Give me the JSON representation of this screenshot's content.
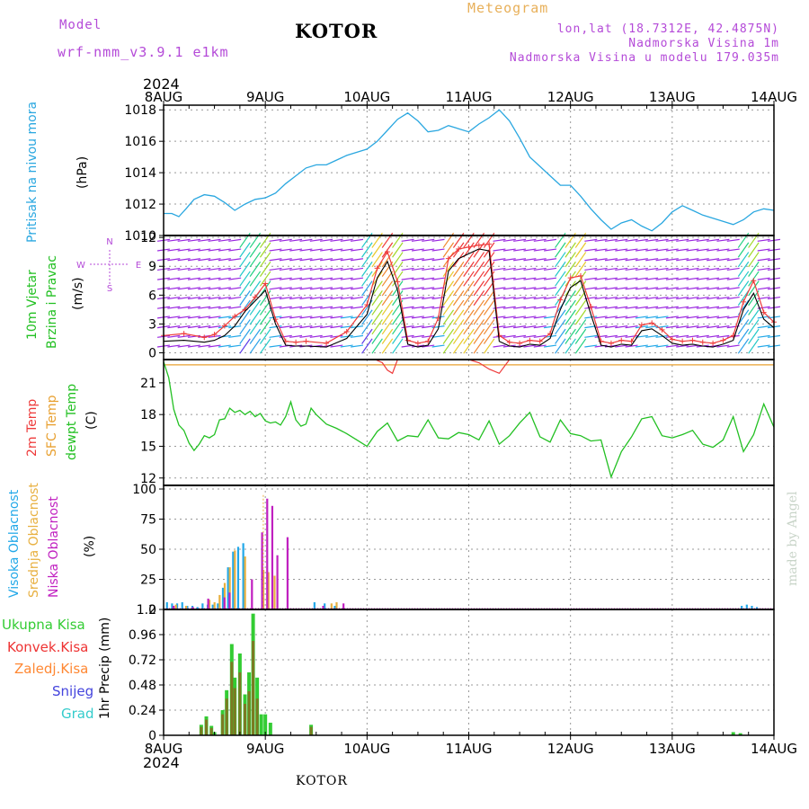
{
  "header": {
    "model_label": "Model",
    "model_name": "wrf-nmm_v3.9.1  e1km",
    "station_title": "KOTOR",
    "meteogram_label": "Meteogram",
    "lonlat": "lon,lat (18.7312E, 42.4875N)",
    "elevation": "Nadmorska Visina 1m",
    "model_elevation": "Nadmorska Visina u modelu 179.035m",
    "year_top": "2024",
    "year_bottom": "2024",
    "bottom_station": "KOTOR",
    "credit": "made by Angel"
  },
  "colors": {
    "pressure": "#2aa7e0",
    "wind_speed": "#000000",
    "gust": "#ee3b3b",
    "temp2m": "#ee3b3b",
    "sfc_temp": "#e8a030",
    "dewpoint": "#22c022",
    "cloud_high": "#22a8e8",
    "cloud_mid": "#e8b040",
    "cloud_low": "#c020c0",
    "precip_total": "#33cc33",
    "precip_conv": "#ee3333",
    "precip_frozen": "#ff8833",
    "snow": "#4444dd",
    "graupel": "#33cccc",
    "axis_label_purple": "#b44ad8"
  },
  "chart_data": [
    {
      "type": "line",
      "panel": "pressure",
      "title": "",
      "ylabel_lines": [
        "Pritisak na nivou mora"
      ],
      "unit": "(hPa)",
      "x_ticks": [
        "8AUG",
        "9AUG",
        "10AUG",
        "11AUG",
        "12AUG",
        "13AUG",
        "14AUG"
      ],
      "ylim": [
        1010,
        1018.3
      ],
      "y_ticks": [
        1010,
        1012,
        1014,
        1016,
        1018
      ],
      "grid": true,
      "series": [
        {
          "name": "pressure",
          "x": [
            0,
            0.08,
            0.15,
            0.22,
            0.3,
            0.4,
            0.5,
            0.6,
            0.7,
            0.8,
            0.9,
            1.0,
            1.1,
            1.2,
            1.3,
            1.4,
            1.5,
            1.6,
            1.7,
            1.8,
            1.9,
            2.0,
            2.1,
            2.2,
            2.3,
            2.4,
            2.5,
            2.6,
            2.7,
            2.8,
            2.9,
            3.0,
            3.1,
            3.2,
            3.3,
            3.4,
            3.5,
            3.6,
            3.7,
            3.8,
            3.9,
            4.0,
            4.1,
            4.2,
            4.3,
            4.4,
            4.5,
            4.6,
            4.7,
            4.8,
            4.9,
            5.0,
            5.1,
            5.2,
            5.3,
            5.4,
            5.5,
            5.6,
            5.7,
            5.8,
            5.9,
            6.0
          ],
          "y": [
            1011.4,
            1011.4,
            1011.2,
            1011.7,
            1012.3,
            1012.6,
            1012.5,
            1012.1,
            1011.6,
            1012.0,
            1012.3,
            1012.4,
            1012.7,
            1013.3,
            1013.8,
            1014.3,
            1014.5,
            1014.5,
            1014.8,
            1015.1,
            1015.3,
            1015.5,
            1016.0,
            1016.7,
            1017.4,
            1017.8,
            1017.3,
            1016.6,
            1016.7,
            1017.0,
            1016.8,
            1016.6,
            1017.1,
            1017.5,
            1018.0,
            1017.3,
            1016.2,
            1015.0,
            1014.4,
            1013.8,
            1013.2,
            1013.2,
            1012.5,
            1011.7,
            1011.0,
            1010.4,
            1010.8,
            1011.0,
            1010.6,
            1010.3,
            1010.8,
            1011.5,
            1011.9,
            1011.6,
            1011.3,
            1011.1,
            1010.9,
            1010.7,
            1011.0,
            1011.5,
            1011.7,
            1011.6
          ]
        }
      ]
    },
    {
      "type": "line",
      "panel": "wind",
      "title": "",
      "ylabel_lines": [
        "10m Vjetar",
        "Brzina i Pravac"
      ],
      "unit": "(m/s)",
      "compass_labels": [
        "N",
        "W",
        "E",
        "S"
      ],
      "ylim": [
        -0.7,
        12.2
      ],
      "y_ticks": [
        0,
        3,
        6,
        9,
        12
      ],
      "grid": true,
      "series": [
        {
          "name": "wind_speed",
          "x": [
            0,
            0.2,
            0.4,
            0.5,
            0.6,
            0.7,
            0.8,
            0.9,
            1.0,
            1.1,
            1.2,
            1.3,
            1.4,
            1.6,
            1.8,
            2.0,
            2.1,
            2.2,
            2.3,
            2.4,
            2.5,
            2.6,
            2.7,
            2.8,
            2.9,
            3.0,
            3.1,
            3.2,
            3.3,
            3.4,
            3.5,
            3.6,
            3.7,
            3.8,
            3.9,
            4.0,
            4.1,
            4.2,
            4.3,
            4.4,
            4.5,
            4.6,
            4.7,
            4.8,
            4.9,
            5.0,
            5.1,
            5.2,
            5.3,
            5.4,
            5.5,
            5.6,
            5.7,
            5.8,
            5.9,
            6.0
          ],
          "y": [
            1.2,
            1.3,
            1.1,
            1.3,
            1.8,
            2.8,
            4.3,
            5.4,
            6.5,
            3.0,
            0.8,
            0.7,
            0.7,
            0.6,
            1.5,
            4.0,
            7.8,
            9.5,
            6.5,
            0.9,
            0.6,
            0.8,
            2.5,
            8.5,
            9.8,
            10.3,
            10.8,
            10.6,
            1.2,
            0.7,
            0.6,
            0.9,
            0.8,
            1.5,
            4.5,
            6.8,
            7.5,
            4.0,
            0.8,
            0.6,
            0.9,
            0.8,
            2.3,
            2.5,
            1.8,
            1.0,
            0.8,
            0.9,
            0.7,
            0.6,
            0.9,
            1.3,
            4.5,
            6.2,
            3.5,
            2.6
          ]
        },
        {
          "name": "gust",
          "x": [
            0,
            0.2,
            0.4,
            0.5,
            0.6,
            0.7,
            0.8,
            0.9,
            1.0,
            1.1,
            1.2,
            1.3,
            1.4,
            1.6,
            1.8,
            2.0,
            2.1,
            2.2,
            2.3,
            2.4,
            2.5,
            2.6,
            2.7,
            2.8,
            2.9,
            3.0,
            3.1,
            3.2,
            3.3,
            3.4,
            3.5,
            3.6,
            3.7,
            3.8,
            3.9,
            4.0,
            4.1,
            4.2,
            4.3,
            4.4,
            4.5,
            4.6,
            4.7,
            4.8,
            4.9,
            5.0,
            5.1,
            5.2,
            5.3,
            5.4,
            5.5,
            5.6,
            5.7,
            5.8,
            5.9,
            6.0
          ],
          "y": [
            1.8,
            2.0,
            1.6,
            1.9,
            2.8,
            3.8,
            4.5,
            5.8,
            7.2,
            3.5,
            1.2,
            1.1,
            1.2,
            1.0,
            2.2,
            5.0,
            8.8,
            10.5,
            7.4,
            1.3,
            1.0,
            1.2,
            3.6,
            9.8,
            10.8,
            11.0,
            11.2,
            11.3,
            1.8,
            1.1,
            1.0,
            1.3,
            1.2,
            2.0,
            5.5,
            7.8,
            8.0,
            4.8,
            1.2,
            1.0,
            1.3,
            1.2,
            2.9,
            3.1,
            2.4,
            1.4,
            1.2,
            1.3,
            1.1,
            1.0,
            1.3,
            1.8,
            5.3,
            7.5,
            4.2,
            3.2
          ]
        }
      ]
    },
    {
      "type": "line",
      "panel": "temperature",
      "title": "",
      "ylabel_lines": [
        "2m Temp",
        "SFC Temp",
        "dewpt Temp"
      ],
      "unit": "(C)",
      "ylim": [
        11.3,
        23.2
      ],
      "y_ticks": [
        12,
        15,
        18,
        21
      ],
      "grid": true,
      "series": [
        {
          "name": "sfc_temp",
          "x": [
            0,
            6
          ],
          "y": [
            22.7,
            22.7
          ]
        },
        {
          "name": "temp2m",
          "x": [
            2.08,
            2.15,
            2.2,
            2.25,
            2.3,
            3.0,
            3.1,
            3.2,
            3.3,
            3.4
          ],
          "y": [
            23.2,
            22.9,
            22.2,
            21.9,
            23.2,
            23.2,
            22.9,
            22.3,
            21.9,
            23.2
          ]
        },
        {
          "name": "dewpoint",
          "x": [
            0,
            0.05,
            0.1,
            0.15,
            0.2,
            0.25,
            0.3,
            0.35,
            0.4,
            0.45,
            0.5,
            0.55,
            0.6,
            0.65,
            0.7,
            0.75,
            0.8,
            0.85,
            0.9,
            0.95,
            1.0,
            1.05,
            1.1,
            1.15,
            1.2,
            1.25,
            1.3,
            1.35,
            1.4,
            1.45,
            1.5,
            1.6,
            1.7,
            1.8,
            1.9,
            2.0,
            2.1,
            2.2,
            2.3,
            2.4,
            2.5,
            2.6,
            2.7,
            2.8,
            2.9,
            3.0,
            3.1,
            3.2,
            3.3,
            3.4,
            3.5,
            3.6,
            3.7,
            3.8,
            3.9,
            4.0,
            4.1,
            4.2,
            4.3,
            4.4,
            4.5,
            4.6,
            4.7,
            4.8,
            4.9,
            5.0,
            5.1,
            5.2,
            5.3,
            5.4,
            5.5,
            5.6,
            5.7,
            5.8,
            5.9,
            6.0
          ],
          "y": [
            23.0,
            21.5,
            18.5,
            17.0,
            16.5,
            15.3,
            14.6,
            15.2,
            16.0,
            15.8,
            16.1,
            17.5,
            17.6,
            18.6,
            18.2,
            18.4,
            18.0,
            18.3,
            17.8,
            18.1,
            17.4,
            17.2,
            17.3,
            17.0,
            17.8,
            19.2,
            17.5,
            16.9,
            17.1,
            18.6,
            18.0,
            17.1,
            16.7,
            16.2,
            15.6,
            15.0,
            16.4,
            17.2,
            15.5,
            16.0,
            15.9,
            17.5,
            15.8,
            15.7,
            16.3,
            16.1,
            15.6,
            17.4,
            15.2,
            16.0,
            17.2,
            18.2,
            15.9,
            15.4,
            17.5,
            16.2,
            16.0,
            15.5,
            15.6,
            12.1,
            14.5,
            15.9,
            17.6,
            17.8,
            16.0,
            15.8,
            16.1,
            16.5,
            15.2,
            14.9,
            15.6,
            17.8,
            14.5,
            16.1,
            19.0,
            16.8
          ]
        }
      ]
    },
    {
      "type": "bar",
      "panel": "cloud",
      "title": "",
      "ylabel_lines": [
        "Visoka Oblacnost",
        "Srednja Oblacnost",
        "Niska Oblacnost"
      ],
      "unit": "(%)",
      "ylim": [
        0,
        103
      ],
      "y_ticks": [
        0,
        25,
        50,
        75,
        100
      ],
      "grid": true,
      "series": [
        {
          "name": "high",
          "x": [
            0.05,
            0.1,
            0.15,
            0.2,
            0.25,
            0.3,
            0.35,
            0.4,
            0.45,
            0.5,
            0.55,
            0.6,
            0.65,
            0.7,
            0.75,
            0.8,
            1.5,
            1.6,
            1.7,
            5.7,
            5.75,
            5.8,
            5.85
          ],
          "y": [
            6,
            5,
            5,
            6,
            3,
            3,
            2,
            5,
            4,
            4,
            5,
            18,
            35,
            48,
            52,
            55,
            6,
            5,
            3,
            3,
            4,
            3,
            2
          ]
        },
        {
          "name": "mid",
          "x": [
            0.12,
            0.22,
            0.45,
            0.5,
            0.55,
            0.6,
            0.65,
            0.7,
            0.8,
            0.98,
            1.03,
            1.09,
            1.65,
            1.7
          ],
          "y": [
            4,
            3,
            8,
            6,
            12,
            22,
            35,
            49,
            44,
            33,
            31,
            28,
            5,
            6
          ]
        },
        {
          "name": "low",
          "x": [
            0.08,
            0.27,
            0.42,
            0.58,
            0.63,
            0.85,
            0.95,
            1.0,
            1.05,
            1.1,
            1.2,
            1.55,
            1.75
          ],
          "y": [
            3,
            2,
            9,
            10,
            14,
            25,
            64,
            92,
            86,
            45,
            60,
            3,
            5
          ]
        }
      ]
    },
    {
      "type": "bar",
      "panel": "precip",
      "title": "",
      "ylabel": "1hr Precip (mm)",
      "legend": [
        "Ukupna Kisa",
        "Konvek.Kisa",
        "Zaledj.Kisa",
        "Snijeg",
        "Grad"
      ],
      "x_ticks": [
        "8AUG",
        "9AUG",
        "10AUG",
        "11AUG",
        "12AUG",
        "13AUG",
        "14AUG"
      ],
      "ylim": [
        0,
        1.2
      ],
      "y_ticks": [
        0,
        0.24,
        0.48,
        0.72,
        0.96,
        1.2
      ],
      "grid": true,
      "series": [
        {
          "name": "total",
          "x": [
            0.37,
            0.42,
            0.47,
            0.5,
            0.58,
            0.62,
            0.67,
            0.7,
            0.75,
            0.8,
            0.84,
            0.88,
            0.92,
            0.96,
            1.0,
            1.05,
            1.45,
            5.6,
            5.67
          ],
          "y": [
            0.1,
            0.18,
            0.09,
            0.03,
            0.24,
            0.43,
            0.87,
            0.55,
            0.78,
            0.39,
            0.6,
            1.16,
            0.55,
            0.2,
            0.2,
            0.12,
            0.1,
            0.03,
            0.02
          ]
        },
        {
          "name": "convective",
          "x": [
            0.37,
            0.42,
            0.47,
            0.58,
            0.62,
            0.67,
            0.7,
            0.75,
            0.8,
            0.84,
            0.88,
            0.92,
            1.45
          ],
          "y": [
            0.08,
            0.15,
            0.07,
            0.2,
            0.35,
            0.7,
            0.45,
            0.6,
            0.3,
            0.42,
            0.9,
            0.35,
            0.08
          ]
        }
      ]
    }
  ]
}
